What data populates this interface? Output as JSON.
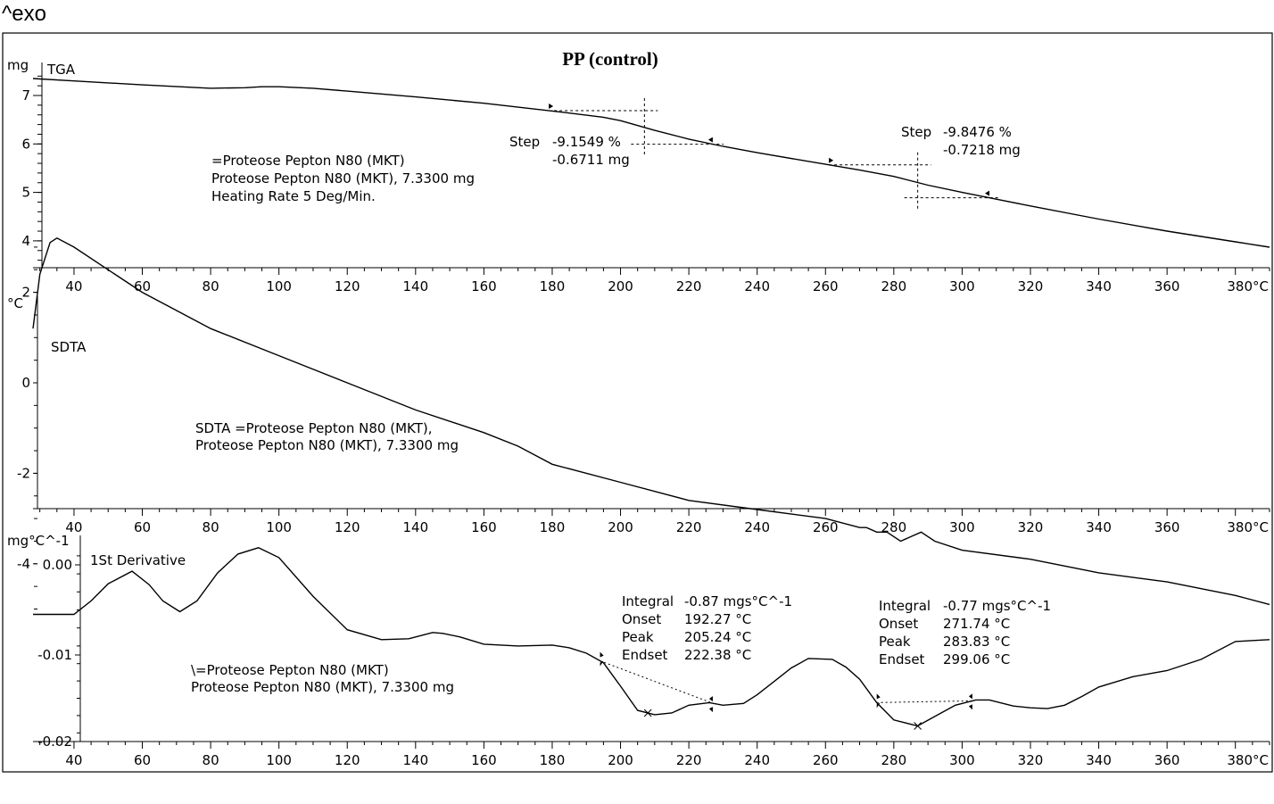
{
  "header": {
    "exo_label": "^exo"
  },
  "chart_data": [
    {
      "panel": "tga",
      "type": "line",
      "title": "PP (control)",
      "series_label": "TGA",
      "y_unit": "mg",
      "x_unit": "°C",
      "xlim": [
        28,
        390
      ],
      "ylim": [
        3.5,
        7.7
      ],
      "x_ticks": [
        40,
        60,
        80,
        100,
        120,
        140,
        160,
        180,
        200,
        220,
        240,
        260,
        280,
        300,
        320,
        340,
        360,
        380
      ],
      "y_ticks": [
        4,
        5,
        6,
        7
      ],
      "x": [
        28,
        40,
        60,
        80,
        90,
        95,
        100,
        110,
        120,
        140,
        160,
        180,
        195,
        200,
        210,
        220,
        230,
        240,
        260,
        270,
        280,
        290,
        300,
        310,
        320,
        340,
        360,
        380,
        390
      ],
      "y": [
        7.35,
        7.3,
        7.22,
        7.15,
        7.16,
        7.18,
        7.18,
        7.15,
        7.09,
        6.97,
        6.84,
        6.68,
        6.55,
        6.48,
        6.28,
        6.1,
        5.95,
        5.82,
        5.58,
        5.46,
        5.33,
        5.15,
        5.0,
        4.86,
        4.72,
        4.45,
        4.2,
        3.98,
        3.87
      ],
      "annotations": [
        {
          "lines": [
            "=Proteose Pepton N80 (MKT)",
            "Proteose Pepton N80 (MKT), 7.3300 mg",
            "Heating Rate 5 Deg/Min."
          ]
        }
      ],
      "steps": [
        {
          "label": "Step",
          "percent": "-9.1549 %",
          "mass": "-0.6711 mg",
          "left_x": 179,
          "right_x": 227,
          "mid_x": 207
        },
        {
          "label": "Step",
          "percent": "-9.8476 %",
          "mass": "-0.7218 mg",
          "left_x": 261,
          "right_x": 308,
          "mid_x": 287
        }
      ]
    },
    {
      "panel": "sdta",
      "type": "line",
      "series_label": "SDTA",
      "y_unit": "°C",
      "x_unit": "°C",
      "xlim": [
        28,
        390
      ],
      "ylim": [
        -5.5,
        3.5
      ],
      "x_ticks": [
        40,
        60,
        80,
        100,
        120,
        140,
        160,
        180,
        200,
        220,
        240,
        260,
        280,
        300,
        320,
        340,
        360,
        380
      ],
      "y_ticks": [
        2,
        0,
        -2,
        -4
      ],
      "x": [
        28,
        30,
        33,
        35,
        40,
        50,
        60,
        80,
        100,
        120,
        140,
        160,
        170,
        180,
        200,
        220,
        240,
        260,
        270,
        272,
        275,
        278,
        282,
        285,
        288,
        292,
        300,
        320,
        340,
        360,
        380,
        390
      ],
      "y": [
        1.2,
        2.4,
        3.1,
        3.2,
        3.0,
        2.5,
        2.0,
        1.2,
        0.6,
        0.0,
        -0.6,
        -1.1,
        -1.4,
        -1.8,
        -2.2,
        -2.6,
        -2.8,
        -3.0,
        -3.2,
        -3.2,
        -3.3,
        -3.3,
        -3.5,
        -3.4,
        -3.3,
        -3.5,
        -3.7,
        -3.9,
        -4.2,
        -4.4,
        -4.7,
        -4.9
      ],
      "annotations": [
        {
          "lines": [
            "SDTA =Proteose Pepton N80 (MKT),",
            "Proteose Pepton N80 (MKT), 7.3300 mg"
          ]
        }
      ]
    },
    {
      "panel": "derivative",
      "type": "line",
      "series_label": "1St Derivative",
      "y_unit": "mg°C^-1",
      "x_unit": "°C",
      "xlim": [
        28,
        390
      ],
      "ylim": [
        -0.02,
        0.002
      ],
      "x_ticks": [
        40,
        60,
        80,
        100,
        120,
        140,
        160,
        180,
        200,
        220,
        240,
        260,
        280,
        300,
        320,
        340,
        360,
        380
      ],
      "y_ticks": [
        "0.00",
        "-0.01",
        "-0.02"
      ],
      "y_tick_values": [
        0.0,
        -0.01,
        -0.02
      ],
      "x": [
        28,
        40,
        45,
        50,
        57,
        62,
        66,
        71,
        76,
        82,
        88,
        94,
        100,
        110,
        120,
        130,
        138,
        145,
        148,
        153,
        160,
        170,
        180,
        185,
        190,
        195,
        200,
        205,
        210,
        215,
        220,
        226,
        230,
        236,
        240,
        250,
        255,
        262,
        266,
        270,
        275,
        280,
        287,
        292,
        298,
        304,
        308,
        315,
        320,
        325,
        330,
        335,
        340,
        350,
        360,
        370,
        380,
        390
      ],
      "y": [
        -0.0055,
        -0.0055,
        -0.004,
        -0.0021,
        -0.0007,
        -0.0022,
        -0.004,
        -0.0052,
        -0.004,
        -0.0009,
        0.0012,
        0.0019,
        0.0008,
        -0.0035,
        -0.0072,
        -0.0083,
        -0.0082,
        -0.0075,
        -0.0076,
        -0.008,
        -0.0088,
        -0.009,
        -0.0089,
        -0.0092,
        -0.0098,
        -0.0109,
        -0.0136,
        -0.0164,
        -0.0169,
        -0.0167,
        -0.0158,
        -0.0155,
        -0.0158,
        -0.0156,
        -0.0146,
        -0.0115,
        -0.0104,
        -0.0105,
        -0.0114,
        -0.0128,
        -0.0155,
        -0.0175,
        -0.0182,
        -0.0171,
        -0.0158,
        -0.0152,
        -0.0152,
        -0.0159,
        -0.0161,
        -0.0162,
        -0.0158,
        -0.0148,
        -0.0137,
        -0.0125,
        -0.0118,
        -0.0105,
        -0.0085,
        -0.0083
      ],
      "annotations": [
        {
          "lines": [
            "\\=Proteose Pepton N80 (MKT)",
            "Proteose Pepton N80 (MKT), 7.3300 mg"
          ]
        }
      ],
      "peak_results": [
        {
          "integral_label": "Integral",
          "integral": "-0.87 mgs°C^-1",
          "onset_label": "Onset",
          "onset": "192.27 °C",
          "peak_label": "Peak",
          "peak": "205.24 °C",
          "endset_label": "Endset",
          "endset": "222.38 °C",
          "baseline_start_x": 194,
          "baseline_end_x": 227,
          "peak_x": 208
        },
        {
          "integral_label": "Integral",
          "integral": "-0.77 mgs°C^-1",
          "onset_label": "Onset",
          "onset": "271.74 °C",
          "peak_label": "Peak",
          "peak": "283.83 °C",
          "endset_label": "Endset",
          "endset": "299.06 °C",
          "baseline_start_x": 275,
          "baseline_end_x": 303,
          "peak_x": 287
        }
      ]
    }
  ]
}
